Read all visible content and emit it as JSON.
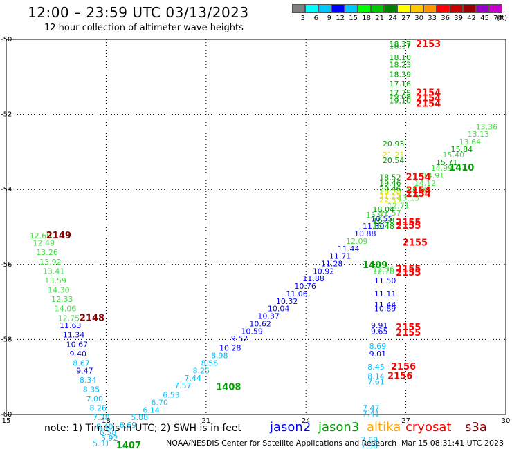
{
  "header": {
    "title": "12:00 – 23:59 UTC 03/13/2023",
    "subtitle": "12 hour collection of altimeter wave heights"
  },
  "colorbar": {
    "colors": [
      "#808080",
      "#00ffff",
      "#00c8ff",
      "#0000ff",
      "#00c8ff",
      "#00ff00",
      "#00c800",
      "#008000",
      "#ffff00",
      "#ffc800",
      "#ff9600",
      "#ff0000",
      "#c80000",
      "#960000",
      "#9600c8",
      "#c800c8",
      "#ff96ff",
      "#000000"
    ],
    "labels": [
      "3",
      "6",
      "9",
      "12",
      "15",
      "18",
      "21",
      "24",
      "27",
      "30",
      "33",
      "36",
      "39",
      "42",
      "45",
      "70"
    ],
    "unit": "(ft)"
  },
  "footer": {
    "note": "note:  1) Time is in UTC;  2) SWH is in feet",
    "satellites": [
      {
        "name": "jason2",
        "color": "#0000ff"
      },
      {
        "name": "jason3",
        "color": "#00a000"
      },
      {
        "name": "altika",
        "color": "#ffa500"
      },
      {
        "name": "cryosat",
        "color": "#ff0000"
      },
      {
        "name": "s3a",
        "color": "#8b0000"
      }
    ],
    "credit": "NOAA/NESDIS Center for Satellite Applications and Research",
    "timestamp": "Mar 15 08:31:41 UTC 2023"
  },
  "chart_data": {
    "type": "scatter",
    "xlim": [
      15,
      30
    ],
    "ylim": [
      -60,
      -50
    ],
    "x_ticks": [
      15,
      18,
      21,
      24,
      27,
      30
    ],
    "y_ticks": [
      -50,
      -52,
      -54,
      -56,
      -58,
      -60
    ],
    "grid": true,
    "colors": {
      "cyan": "#00bfff",
      "blue": "#0000ff",
      "lightgreen": "#44dd44",
      "green": "#00a000",
      "darkgreen": "#007000",
      "yellow": "#dddd00",
      "red": "#ff0000",
      "darkred": "#8b0000"
    },
    "labels": [
      {
        "x": 15.7,
        "y": -55.3,
        "text": "12.69",
        "c": "lightgreen"
      },
      {
        "x": 16.2,
        "y": -55.3,
        "text": "2149",
        "c": "darkred",
        "big": true
      },
      {
        "x": 15.8,
        "y": -55.5,
        "text": "12.49",
        "c": "lightgreen"
      },
      {
        "x": 15.9,
        "y": -55.75,
        "text": "13.26",
        "c": "lightgreen"
      },
      {
        "x": 16.0,
        "y": -56.0,
        "text": "13.92",
        "c": "lightgreen"
      },
      {
        "x": 16.1,
        "y": -56.25,
        "text": "13.41",
        "c": "lightgreen"
      },
      {
        "x": 16.15,
        "y": -56.5,
        "text": "13.59",
        "c": "lightgreen"
      },
      {
        "x": 16.25,
        "y": -56.75,
        "text": "14.30",
        "c": "lightgreen"
      },
      {
        "x": 16.35,
        "y": -57.0,
        "text": "12.33",
        "c": "lightgreen"
      },
      {
        "x": 16.45,
        "y": -57.25,
        "text": "14.06",
        "c": "lightgreen"
      },
      {
        "x": 16.55,
        "y": -57.5,
        "text": "12.75",
        "c": "lightgreen"
      },
      {
        "x": 17.2,
        "y": -57.5,
        "text": "2148",
        "c": "darkred",
        "big": true
      },
      {
        "x": 16.6,
        "y": -57.7,
        "text": "11.63",
        "c": "blue"
      },
      {
        "x": 16.7,
        "y": -57.95,
        "text": "11.34",
        "c": "blue"
      },
      {
        "x": 16.8,
        "y": -58.2,
        "text": "10.67",
        "c": "blue"
      },
      {
        "x": 16.9,
        "y": -58.45,
        "text": "9.40",
        "c": "blue"
      },
      {
        "x": 17.0,
        "y": -58.7,
        "text": "8.67",
        "c": "cyan"
      },
      {
        "x": 17.1,
        "y": -58.9,
        "text": "9.47",
        "c": "blue"
      },
      {
        "x": 17.2,
        "y": -59.15,
        "text": "8.34",
        "c": "cyan"
      },
      {
        "x": 17.3,
        "y": -59.4,
        "text": "8.35",
        "c": "cyan"
      },
      {
        "x": 17.4,
        "y": -59.65,
        "text": "7.00",
        "c": "cyan"
      },
      {
        "x": 17.5,
        "y": -59.9,
        "text": "8.26",
        "c": "cyan"
      },
      {
        "x": 17.6,
        "y": -60.15,
        "text": "7.38",
        "c": "cyan"
      },
      {
        "x": 17.7,
        "y": -60.4,
        "text": "8.40",
        "c": "cyan"
      },
      {
        "x": 17.8,
        "y": -60.55,
        "text": "6.58",
        "c": "cyan"
      },
      {
        "x": 17.85,
        "y": -60.7,
        "text": "5.92",
        "c": "cyan"
      },
      {
        "x": 17.6,
        "y": -60.85,
        "text": "5.31",
        "c": "cyan"
      },
      {
        "x": 18.3,
        "y": -60.9,
        "text": "1407",
        "c": "green",
        "big": true
      },
      {
        "x": 18.4,
        "y": -60.35,
        "text": "6.69",
        "c": "cyan"
      },
      {
        "x": 18.75,
        "y": -60.15,
        "text": "5.88",
        "c": "cyan"
      },
      {
        "x": 19.1,
        "y": -59.95,
        "text": "6.14",
        "c": "cyan"
      },
      {
        "x": 19.35,
        "y": -59.75,
        "text": "6.70",
        "c": "cyan"
      },
      {
        "x": 19.7,
        "y": -59.55,
        "text": "6.53",
        "c": "cyan"
      },
      {
        "x": 20.05,
        "y": -59.3,
        "text": "7.57",
        "c": "cyan"
      },
      {
        "x": 20.35,
        "y": -59.1,
        "text": "7.44",
        "c": "cyan"
      },
      {
        "x": 21.3,
        "y": -59.35,
        "text": "1408",
        "c": "green",
        "big": true
      },
      {
        "x": 20.6,
        "y": -58.9,
        "text": "8.25",
        "c": "cyan"
      },
      {
        "x": 20.85,
        "y": -58.7,
        "text": "8.56",
        "c": "cyan"
      },
      {
        "x": 21.15,
        "y": -58.5,
        "text": "8.98",
        "c": "cyan"
      },
      {
        "x": 21.4,
        "y": -58.3,
        "text": "10.28",
        "c": "blue"
      },
      {
        "x": 21.75,
        "y": -58.05,
        "text": "9.52",
        "c": "blue"
      },
      {
        "x": 22.05,
        "y": -57.85,
        "text": "10.59",
        "c": "blue"
      },
      {
        "x": 22.3,
        "y": -57.65,
        "text": "10.62",
        "c": "blue"
      },
      {
        "x": 22.55,
        "y": -57.45,
        "text": "10.37",
        "c": "blue"
      },
      {
        "x": 22.85,
        "y": -57.25,
        "text": "10.04",
        "c": "blue"
      },
      {
        "x": 23.1,
        "y": -57.05,
        "text": "10.32",
        "c": "blue"
      },
      {
        "x": 23.4,
        "y": -56.85,
        "text": "11.06",
        "c": "blue"
      },
      {
        "x": 23.65,
        "y": -56.65,
        "text": "10.76",
        "c": "blue"
      },
      {
        "x": 23.9,
        "y": -56.45,
        "text": "11.88",
        "c": "blue"
      },
      {
        "x": 24.2,
        "y": -56.25,
        "text": "10.92",
        "c": "blue"
      },
      {
        "x": 24.45,
        "y": -56.05,
        "text": "11.28",
        "c": "blue"
      },
      {
        "x": 24.7,
        "y": -55.85,
        "text": "11.71",
        "c": "blue"
      },
      {
        "x": 24.95,
        "y": -55.65,
        "text": "11.44",
        "c": "blue"
      },
      {
        "x": 25.7,
        "y": -56.1,
        "text": "1409",
        "c": "green",
        "big": true
      },
      {
        "x": 25.2,
        "y": -55.45,
        "text": "12.09",
        "c": "lightgreen"
      },
      {
        "x": 25.45,
        "y": -55.25,
        "text": "10.88",
        "c": "blue"
      },
      {
        "x": 25.7,
        "y": -55.05,
        "text": "11.30",
        "c": "blue"
      },
      {
        "x": 25.95,
        "y": -54.85,
        "text": "10.55",
        "c": "blue"
      },
      {
        "x": 25.8,
        "y": -54.75,
        "text": "15.97",
        "c": "lightgreen"
      },
      {
        "x": 26.2,
        "y": -54.7,
        "text": "12.57",
        "c": "lightgreen"
      },
      {
        "x": 26.45,
        "y": -54.5,
        "text": "12.71",
        "c": "lightgreen"
      },
      {
        "x": 26.75,
        "y": -54.3,
        "text": "13.13",
        "c": "lightgreen"
      },
      {
        "x": 27.0,
        "y": -54.1,
        "text": "14.38",
        "c": "lightgreen"
      },
      {
        "x": 27.25,
        "y": -53.9,
        "text": "14.12",
        "c": "lightgreen"
      },
      {
        "x": 27.5,
        "y": -53.7,
        "text": "14.91",
        "c": "lightgreen"
      },
      {
        "x": 27.75,
        "y": -53.5,
        "text": "14.99",
        "c": "lightgreen"
      },
      {
        "x": 27.9,
        "y": -53.35,
        "text": "15.71",
        "c": "green"
      },
      {
        "x": 28.1,
        "y": -53.15,
        "text": "15.40",
        "c": "lightgreen"
      },
      {
        "x": 28.35,
        "y": -53.0,
        "text": "15.84",
        "c": "green"
      },
      {
        "x": 28.6,
        "y": -52.8,
        "text": "13.64",
        "c": "lightgreen"
      },
      {
        "x": 28.85,
        "y": -52.6,
        "text": "13.13",
        "c": "lightgreen"
      },
      {
        "x": 29.1,
        "y": -52.4,
        "text": "13.36",
        "c": "lightgreen"
      },
      {
        "x": 28.3,
        "y": -53.5,
        "text": "1410",
        "c": "green",
        "big": true
      },
      {
        "x": 26.5,
        "y": -50.2,
        "text": "18.37",
        "c": "green"
      },
      {
        "x": 26.5,
        "y": -50.25,
        "text": "18.37",
        "c": "green"
      },
      {
        "x": 27.3,
        "y": -50.2,
        "text": "2153",
        "c": "red",
        "big": true
      },
      {
        "x": 26.5,
        "y": -50.55,
        "text": "18.10",
        "c": "green"
      },
      {
        "x": 26.5,
        "y": -50.75,
        "text": "18.23",
        "c": "green"
      },
      {
        "x": 26.5,
        "y": -51.0,
        "text": "18.39",
        "c": "green"
      },
      {
        "x": 26.5,
        "y": -51.25,
        "text": "17.16",
        "c": "green"
      },
      {
        "x": 26.5,
        "y": -51.5,
        "text": "17.75",
        "c": "green"
      },
      {
        "x": 27.3,
        "y": -51.5,
        "text": "2154",
        "c": "red",
        "big": true
      },
      {
        "x": 26.5,
        "y": -51.6,
        "text": "19.08",
        "c": "green"
      },
      {
        "x": 26.5,
        "y": -51.7,
        "text": "19.10",
        "c": "green"
      },
      {
        "x": 27.3,
        "y": -51.65,
        "text": "2154",
        "c": "red",
        "big": true
      },
      {
        "x": 27.3,
        "y": -51.8,
        "text": "2154",
        "c": "red",
        "big": true
      },
      {
        "x": 26.3,
        "y": -52.85,
        "text": "20.93",
        "c": "green"
      },
      {
        "x": 26.3,
        "y": -53.15,
        "text": "21.21",
        "c": "yellow"
      },
      {
        "x": 26.3,
        "y": -53.3,
        "text": "20.54",
        "c": "green"
      },
      {
        "x": 26.2,
        "y": -53.75,
        "text": "18.52",
        "c": "green"
      },
      {
        "x": 26.2,
        "y": -53.9,
        "text": "19.46",
        "c": "green"
      },
      {
        "x": 27.0,
        "y": -53.75,
        "text": "2154",
        "c": "red",
        "big": true
      },
      {
        "x": 26.2,
        "y": -54.05,
        "text": "20.46",
        "c": "green"
      },
      {
        "x": 26.2,
        "y": -54.15,
        "text": "19.20",
        "c": "yellow"
      },
      {
        "x": 26.2,
        "y": -54.25,
        "text": "21.12",
        "c": "yellow"
      },
      {
        "x": 26.2,
        "y": -54.35,
        "text": "22.53",
        "c": "yellow"
      },
      {
        "x": 27.0,
        "y": -54.1,
        "text": "2154",
        "c": "red",
        "big": true
      },
      {
        "x": 27.0,
        "y": -54.2,
        "text": "2154",
        "c": "red",
        "big": true
      },
      {
        "x": 26.0,
        "y": -54.6,
        "text": "18.04",
        "c": "green"
      },
      {
        "x": 26.0,
        "y": -54.9,
        "text": "16.18",
        "c": "green"
      },
      {
        "x": 26.0,
        "y": -55.05,
        "text": "15.48",
        "c": "green"
      },
      {
        "x": 26.7,
        "y": -54.95,
        "text": "2155",
        "c": "red",
        "big": true
      },
      {
        "x": 26.7,
        "y": -55.05,
        "text": "2155",
        "c": "red",
        "big": true
      },
      {
        "x": 26.9,
        "y": -55.5,
        "text": "2155",
        "c": "red",
        "big": true
      },
      {
        "x": 26.0,
        "y": -56.2,
        "text": "12.36",
        "c": "lightgreen"
      },
      {
        "x": 26.0,
        "y": -56.25,
        "text": "12.78",
        "c": "lightgreen"
      },
      {
        "x": 26.7,
        "y": -56.2,
        "text": "2155",
        "c": "red",
        "big": true
      },
      {
        "x": 26.7,
        "y": -56.3,
        "text": "2155",
        "c": "red",
        "big": true
      },
      {
        "x": 26.05,
        "y": -56.5,
        "text": "11.50",
        "c": "blue"
      },
      {
        "x": 26.05,
        "y": -56.85,
        "text": "11.11",
        "c": "blue"
      },
      {
        "x": 26.05,
        "y": -57.15,
        "text": "11.44",
        "c": "blue"
      },
      {
        "x": 26.05,
        "y": -57.25,
        "text": "10.89",
        "c": "blue"
      },
      {
        "x": 25.95,
        "y": -57.7,
        "text": "9.91",
        "c": "blue"
      },
      {
        "x": 25.95,
        "y": -57.85,
        "text": "9.65",
        "c": "blue"
      },
      {
        "x": 26.7,
        "y": -57.75,
        "text": "2155",
        "c": "red",
        "big": true
      },
      {
        "x": 26.7,
        "y": -57.9,
        "text": "2155",
        "c": "red",
        "big": true
      },
      {
        "x": 25.9,
        "y": -58.25,
        "text": "8.69",
        "c": "cyan"
      },
      {
        "x": 25.9,
        "y": -58.45,
        "text": "9.01",
        "c": "blue"
      },
      {
        "x": 25.85,
        "y": -58.8,
        "text": "8.45",
        "c": "cyan"
      },
      {
        "x": 25.85,
        "y": -59.05,
        "text": "8.14",
        "c": "cyan"
      },
      {
        "x": 25.85,
        "y": -59.2,
        "text": "7.61",
        "c": "cyan"
      },
      {
        "x": 26.55,
        "y": -58.8,
        "text": "2156",
        "c": "red",
        "big": true
      },
      {
        "x": 26.45,
        "y": -59.05,
        "text": "2156",
        "c": "red",
        "big": true
      },
      {
        "x": 25.7,
        "y": -59.9,
        "text": "7.47",
        "c": "cyan"
      },
      {
        "x": 25.7,
        "y": -60.05,
        "text": "7.41",
        "c": "cyan"
      },
      {
        "x": 25.65,
        "y": -60.75,
        "text": "7.69",
        "c": "cyan"
      },
      {
        "x": 25.65,
        "y": -60.9,
        "text": "7.38",
        "c": "cyan"
      }
    ]
  }
}
